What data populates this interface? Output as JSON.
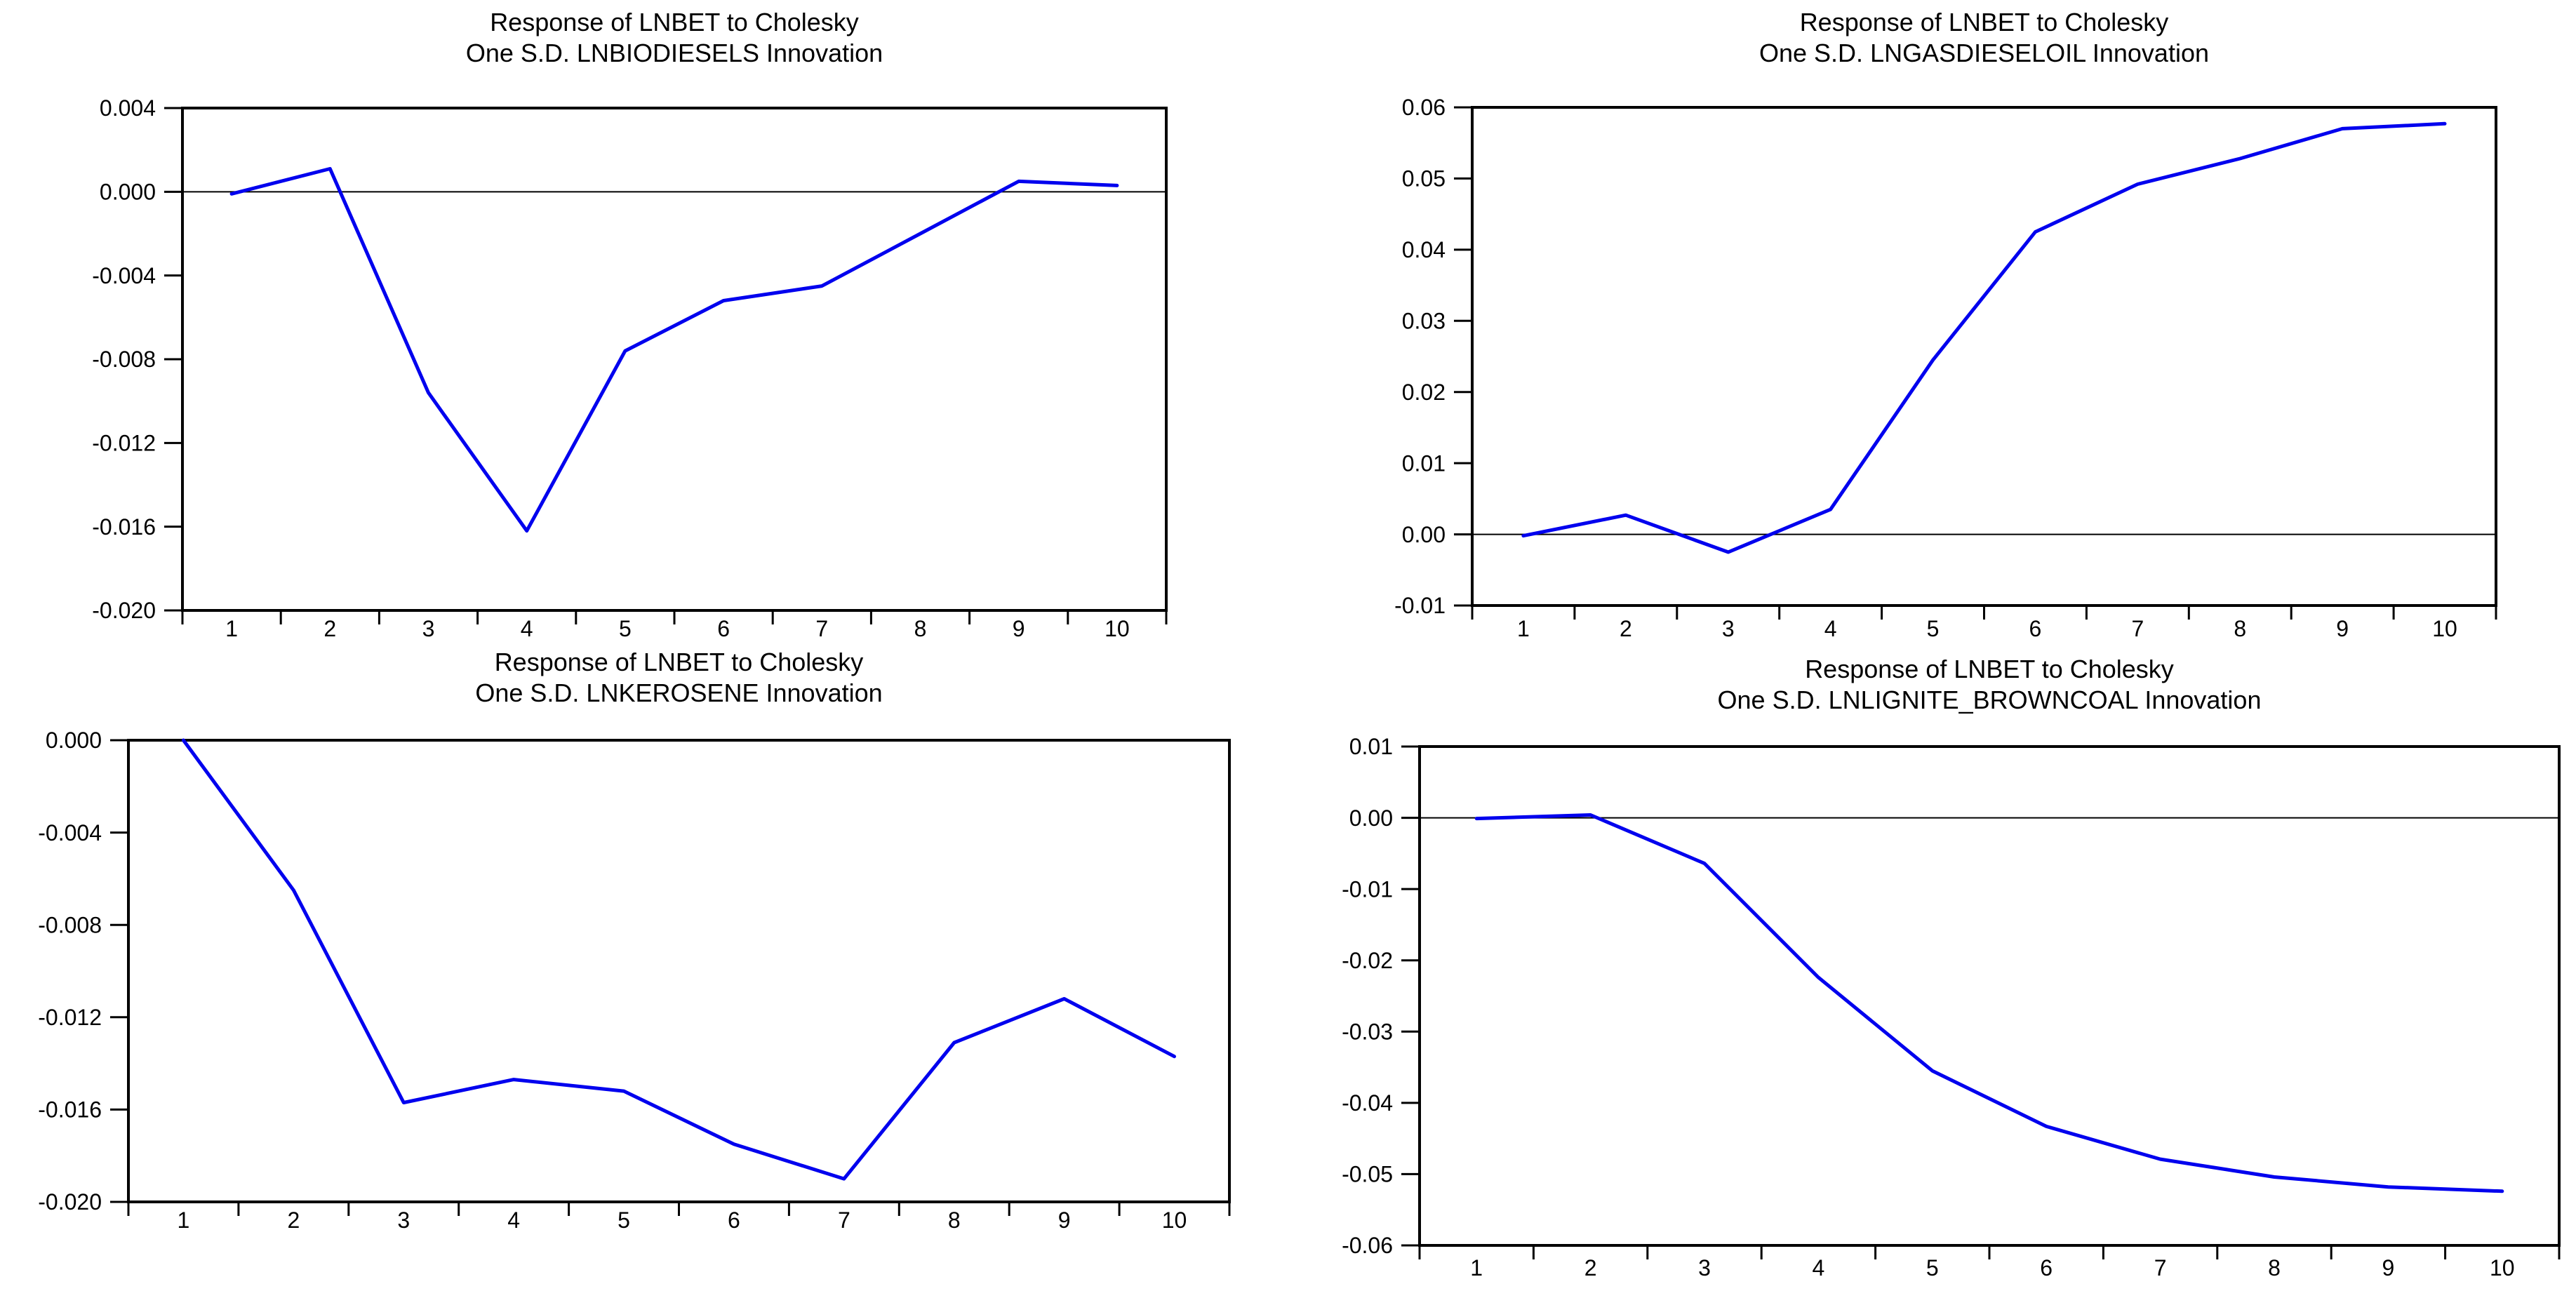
{
  "page": {
    "background": "#ffffff",
    "text_color": "#000000"
  },
  "chart_data": [
    {
      "id": "lnbiodiesels",
      "type": "line",
      "title_line1": "Response of LNBET to Cholesky",
      "title_line2": "One S.D. LNBIODIESELS Innovation",
      "x": [
        1,
        2,
        3,
        4,
        5,
        6,
        7,
        8,
        9,
        10
      ],
      "values": [
        -0.0001,
        0.0011,
        -0.0096,
        -0.0162,
        -0.0076,
        -0.0052,
        -0.0045,
        -0.002,
        0.0005,
        0.0003
      ],
      "xlim": [
        0.5,
        10.5
      ],
      "ylim": [
        -0.02,
        0.004
      ],
      "yticks": [
        0.004,
        0.0,
        -0.004,
        -0.008,
        -0.012,
        -0.016,
        -0.02
      ],
      "ytick_labels": [
        "0.004",
        "0.000",
        "-0.004",
        "-0.008",
        "-0.012",
        "-0.016",
        "-0.020"
      ],
      "xtick_labels": [
        "1",
        "2",
        "3",
        "4",
        "5",
        "6",
        "7",
        "8",
        "9",
        "10"
      ],
      "line_color": "#0000ee",
      "axis_color": "#000000",
      "zero_line": true,
      "grid": false,
      "legend": "none"
    },
    {
      "id": "lngasdieseloil",
      "type": "line",
      "title_line1": "Response of LNBET to Cholesky",
      "title_line2": "One S.D. LNGASDIESELOIL Innovation",
      "x": [
        1,
        2,
        3,
        4,
        5,
        6,
        7,
        8,
        9,
        10
      ],
      "values": [
        -0.0002,
        0.0027,
        -0.0025,
        0.0035,
        0.0245,
        0.0425,
        0.0492,
        0.0528,
        0.057,
        0.0577
      ],
      "xlim": [
        0.5,
        10.5
      ],
      "ylim": [
        -0.01,
        0.06
      ],
      "yticks": [
        0.06,
        0.05,
        0.04,
        0.03,
        0.02,
        0.01,
        0.0,
        -0.01
      ],
      "ytick_labels": [
        "0.06",
        "0.05",
        "0.04",
        "0.03",
        "0.02",
        "0.01",
        "0.00",
        "-0.01"
      ],
      "xtick_labels": [
        "1",
        "2",
        "3",
        "4",
        "5",
        "6",
        "7",
        "8",
        "9",
        "10"
      ],
      "line_color": "#0000ee",
      "axis_color": "#000000",
      "zero_line": true,
      "grid": false,
      "legend": "none"
    },
    {
      "id": "lnkerosene",
      "type": "line",
      "title_line1": "Response of LNBET to Cholesky",
      "title_line2": "One S.D. LNKEROSENE Innovation",
      "x": [
        1,
        2,
        3,
        4,
        5,
        6,
        7,
        8,
        9,
        10
      ],
      "values": [
        0.0,
        -0.0065,
        -0.0157,
        -0.0147,
        -0.0152,
        -0.0175,
        -0.019,
        -0.0131,
        -0.0112,
        -0.0137
      ],
      "xlim": [
        0.5,
        10.5
      ],
      "ylim": [
        -0.02,
        0.0
      ],
      "yticks": [
        0.0,
        -0.004,
        -0.008,
        -0.012,
        -0.016,
        -0.02
      ],
      "ytick_labels": [
        "0.000",
        "-0.004",
        "-0.008",
        "-0.012",
        "-0.016",
        "-0.020"
      ],
      "xtick_labels": [
        "1",
        "2",
        "3",
        "4",
        "5",
        "6",
        "7",
        "8",
        "9",
        "10"
      ],
      "line_color": "#0000ee",
      "axis_color": "#000000",
      "zero_line": false,
      "grid": false,
      "legend": "none"
    },
    {
      "id": "lnlignite_browncoal",
      "type": "line",
      "title_line1": "Response of LNBET to Cholesky",
      "title_line2": "One S.D. LNLIGNITE_BROWNCOAL Innovation",
      "x": [
        1,
        2,
        3,
        4,
        5,
        6,
        7,
        8,
        9,
        10
      ],
      "values": [
        -0.0001,
        0.0004,
        -0.0064,
        -0.0224,
        -0.0355,
        -0.0433,
        -0.0479,
        -0.0504,
        -0.0518,
        -0.0524
      ],
      "xlim": [
        0.5,
        10.5
      ],
      "ylim": [
        -0.06,
        0.01
      ],
      "yticks": [
        0.01,
        0.0,
        -0.01,
        -0.02,
        -0.03,
        -0.04,
        -0.05,
        -0.06
      ],
      "ytick_labels": [
        "0.01",
        "0.00",
        "-0.01",
        "-0.02",
        "-0.03",
        "-0.04",
        "-0.05",
        "-0.06"
      ],
      "xtick_labels": [
        "1",
        "2",
        "3",
        "4",
        "5",
        "6",
        "7",
        "8",
        "9",
        "10"
      ],
      "line_color": "#0000ee",
      "axis_color": "#000000",
      "zero_line": true,
      "grid": false,
      "legend": "none"
    }
  ]
}
